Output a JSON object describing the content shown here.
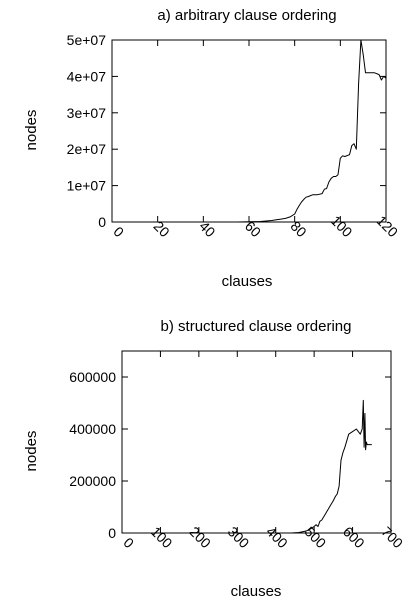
{
  "chart_data": [
    {
      "type": "line",
      "title": "a) arbitrary clause ordering",
      "xlabel": "clauses",
      "ylabel": "nodes",
      "xlim": [
        0,
        120
      ],
      "ylim": [
        0,
        50000000
      ],
      "xticks": [
        0,
        20,
        40,
        60,
        80,
        100,
        120
      ],
      "xtick_labels": [
        "0",
        "20",
        "40",
        "60",
        "80",
        "100",
        "120"
      ],
      "yticks": [
        0,
        10000000,
        20000000,
        30000000,
        40000000,
        50000000
      ],
      "ytick_labels": [
        "0",
        "1e+07",
        "2e+07",
        "3e+07",
        "4e+07",
        "5e+07"
      ],
      "series": [
        {
          "points": [
            [
              0,
              0
            ],
            [
              20,
              0
            ],
            [
              40,
              0
            ],
            [
              55,
              0
            ],
            [
              60,
              50000
            ],
            [
              65,
              150000
            ],
            [
              70,
              400000
            ],
            [
              72,
              600000
            ],
            [
              74,
              800000
            ],
            [
              76,
              1000000
            ],
            [
              78,
              1400000
            ],
            [
              80,
              2200000
            ],
            [
              81,
              3500000
            ],
            [
              82,
              4500000
            ],
            [
              83,
              5500000
            ],
            [
              84,
              6200000
            ],
            [
              85,
              6800000
            ],
            [
              86,
              7000000
            ],
            [
              88,
              7500000
            ],
            [
              90,
              7500000
            ],
            [
              92,
              7800000
            ],
            [
              93,
              9000000
            ],
            [
              94,
              9200000
            ],
            [
              95,
              11000000
            ],
            [
              96,
              12000000
            ],
            [
              97,
              12500000
            ],
            [
              98,
              12500000
            ],
            [
              99,
              13000000
            ],
            [
              100,
              17500000
            ],
            [
              101,
              18200000
            ],
            [
              102,
              18000000
            ],
            [
              104,
              18500000
            ],
            [
              105,
              21000000
            ],
            [
              106,
              21500000
            ],
            [
              107,
              20000000
            ],
            [
              108,
              38000000
            ],
            [
              109,
              50000000
            ],
            [
              110,
              46000000
            ],
            [
              111,
              41000000
            ],
            [
              113,
              41000000
            ],
            [
              115,
              41000000
            ],
            [
              117,
              40500000
            ],
            [
              118,
              39000000
            ],
            [
              119,
              40000000
            ],
            [
              120,
              39500000
            ]
          ]
        }
      ]
    },
    {
      "type": "line",
      "title": "b) structured clause ordering",
      "xlabel": "clauses",
      "ylabel": "nodes",
      "xlim": [
        0,
        700
      ],
      "ylim": [
        0,
        700000
      ],
      "xticks": [
        0,
        100,
        200,
        300,
        400,
        500,
        600,
        700
      ],
      "xtick_labels": [
        "0",
        "100",
        "200",
        "300",
        "400",
        "500",
        "600",
        "700"
      ],
      "yticks": [
        0,
        200000,
        400000,
        600000
      ],
      "ytick_labels": [
        "0",
        "200000",
        "400000",
        "600000"
      ],
      "series": [
        {
          "points": [
            [
              0,
              0
            ],
            [
              200,
              0
            ],
            [
              400,
              0
            ],
            [
              440,
              0
            ],
            [
              460,
              2000
            ],
            [
              470,
              5000
            ],
            [
              480,
              8000
            ],
            [
              490,
              15000
            ],
            [
              500,
              25000
            ],
            [
              505,
              32000
            ],
            [
              510,
              25000
            ],
            [
              515,
              45000
            ],
            [
              520,
              50000
            ],
            [
              530,
              75000
            ],
            [
              540,
              100000
            ],
            [
              550,
              125000
            ],
            [
              555,
              140000
            ],
            [
              560,
              150000
            ],
            [
              565,
              180000
            ],
            [
              570,
              280000
            ],
            [
              575,
              310000
            ],
            [
              580,
              330000
            ],
            [
              590,
              380000
            ],
            [
              600,
              390000
            ],
            [
              610,
              400000
            ],
            [
              615,
              390000
            ],
            [
              620,
              380000
            ],
            [
              625,
              400000
            ],
            [
              628,
              510000
            ],
            [
              630,
              330000
            ],
            [
              632,
              460000
            ],
            [
              634,
              320000
            ],
            [
              636,
              350000
            ],
            [
              638,
              340000
            ],
            [
              642,
              340000
            ],
            [
              650,
              340000
            ]
          ]
        }
      ]
    }
  ]
}
